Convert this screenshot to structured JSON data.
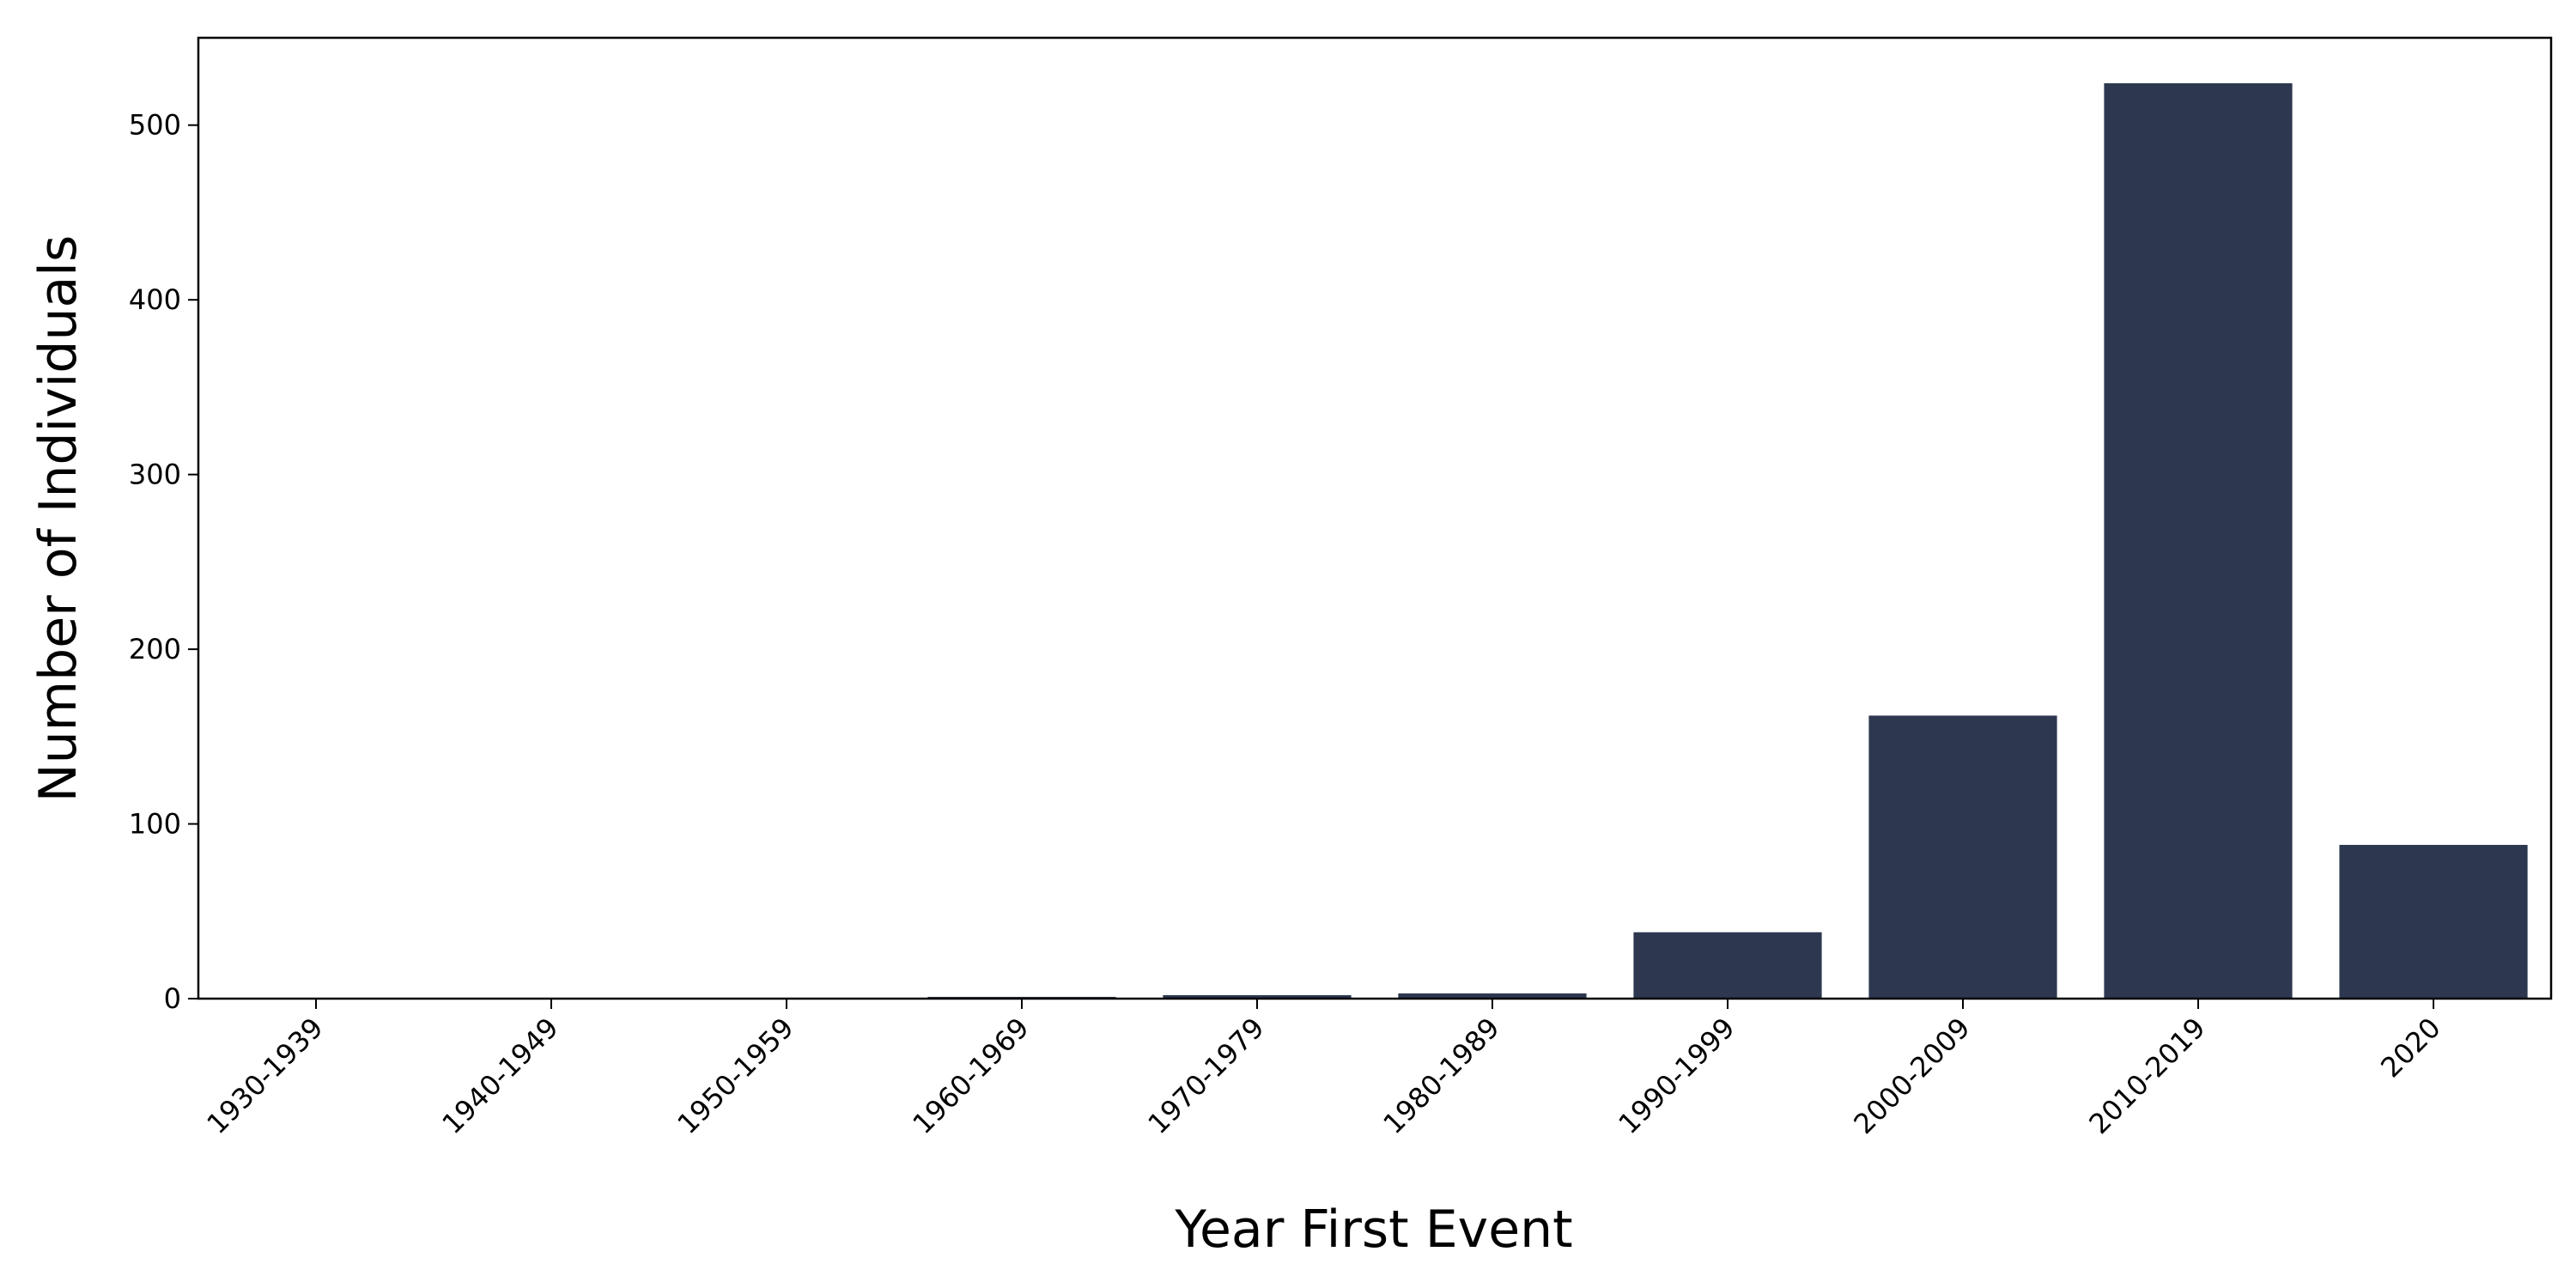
{
  "chart_data": {
    "type": "bar",
    "x_label": "Year First Event",
    "y_label": "Number of Individuals",
    "categories": [
      "1930-1939",
      "1940-1949",
      "1950-1959",
      "1960-1969",
      "1970-1979",
      "1980-1989",
      "1990-1999",
      "2000-2009",
      "2010-2019",
      "2020"
    ],
    "values": [
      0,
      0,
      0,
      1,
      2,
      3,
      38,
      162,
      524,
      88
    ],
    "color": "#2d3850",
    "ylim": [
      0,
      550
    ],
    "yticks": [
      0,
      100,
      200,
      300,
      400,
      500
    ]
  }
}
